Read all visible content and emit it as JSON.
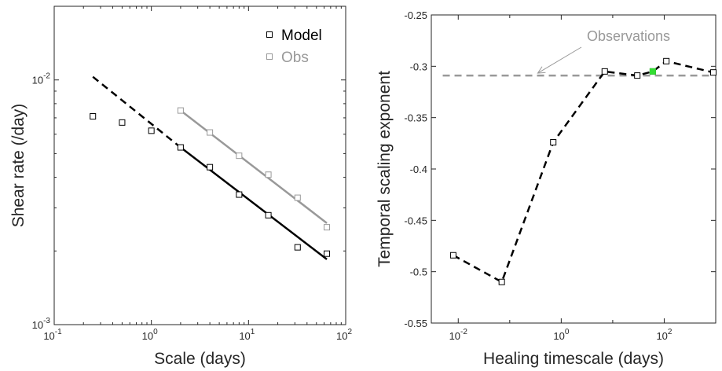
{
  "chart_data": [
    {
      "type": "scatter",
      "title": "",
      "xlabel": "Scale (days)",
      "ylabel": "Shear rate (/day)",
      "xscale": "log",
      "yscale": "log",
      "xlim": [
        0.1,
        100
      ],
      "ylim": [
        0.001,
        0.02
      ],
      "xticks": [
        0.1,
        1,
        10,
        100
      ],
      "xtick_labels": [
        [
          "10",
          "-1"
        ],
        [
          "10",
          "0"
        ],
        [
          "10",
          "1"
        ],
        [
          "10",
          "2"
        ]
      ],
      "yticks": [
        0.001,
        0.01
      ],
      "ytick_labels": [
        [
          "10",
          "-3"
        ],
        [
          "10",
          "-2"
        ]
      ],
      "grid": false,
      "legend_position": "top-right",
      "colors": {
        "model": "#000000",
        "obs": "#999999"
      },
      "series": [
        {
          "name": "Model",
          "marker": "square",
          "x": [
            0.25,
            0.5,
            1,
            2,
            4,
            8,
            16,
            32,
            64
          ],
          "y": [
            0.0071,
            0.0067,
            0.0062,
            0.0053,
            0.0044,
            0.0034,
            0.0028,
            0.00207,
            0.00195
          ]
        },
        {
          "name": "Obs",
          "marker": "square",
          "x": [
            2,
            4,
            8,
            16,
            32,
            64
          ],
          "y": [
            0.0075,
            0.0061,
            0.0049,
            0.0041,
            0.0033,
            0.0025
          ]
        }
      ],
      "fit_lines": [
        {
          "series": "Model",
          "style": "dashed",
          "x": [
            0.25,
            2
          ],
          "y": [
            0.0103,
            0.0053
          ]
        },
        {
          "series": "Model",
          "style": "solid",
          "x": [
            2,
            64
          ],
          "y": [
            0.0053,
            0.00185
          ]
        },
        {
          "series": "Obs",
          "style": "solid",
          "x": [
            2,
            64
          ],
          "y": [
            0.0075,
            0.0026
          ]
        }
      ]
    },
    {
      "type": "line",
      "title": "",
      "xlabel": "Healing timescale (days)",
      "ylabel": "Temporal scaling exponent",
      "xscale": "log",
      "xlim": [
        0.003,
        1000
      ],
      "ylim": [
        -0.55,
        -0.25
      ],
      "xticks": [
        0.01,
        1,
        100
      ],
      "xtick_labels": [
        [
          "10",
          "-2"
        ],
        [
          "10",
          "0"
        ],
        [
          "10",
          "2"
        ]
      ],
      "yticks": [
        -0.55,
        -0.5,
        -0.45,
        -0.4,
        -0.35,
        -0.3,
        -0.25
      ],
      "ytick_labels": [
        "-0.55",
        "-0.5",
        "-0.45",
        "-0.4",
        "-0.35",
        "-0.3",
        "-0.25"
      ],
      "grid": false,
      "colors": {
        "line": "#000000",
        "observations": "#999999",
        "highlight": "#33dd33"
      },
      "series": [
        {
          "style": "dashed",
          "marker": "square",
          "x": [
            0.008,
            0.07,
            0.7,
            7,
            30,
            60,
            110,
            900
          ],
          "y": [
            -0.484,
            -0.51,
            -0.374,
            -0.305,
            -0.309,
            -0.305,
            -0.295,
            -0.306
          ]
        }
      ],
      "highlight_point": {
        "x": 60,
        "y": -0.305
      },
      "reference_line": {
        "label": "Observations",
        "y": -0.309,
        "style": "dashed"
      },
      "annotation": {
        "text": "Observations",
        "arrow_to": {
          "x": 0.35,
          "y": -0.309
        }
      }
    }
  ]
}
